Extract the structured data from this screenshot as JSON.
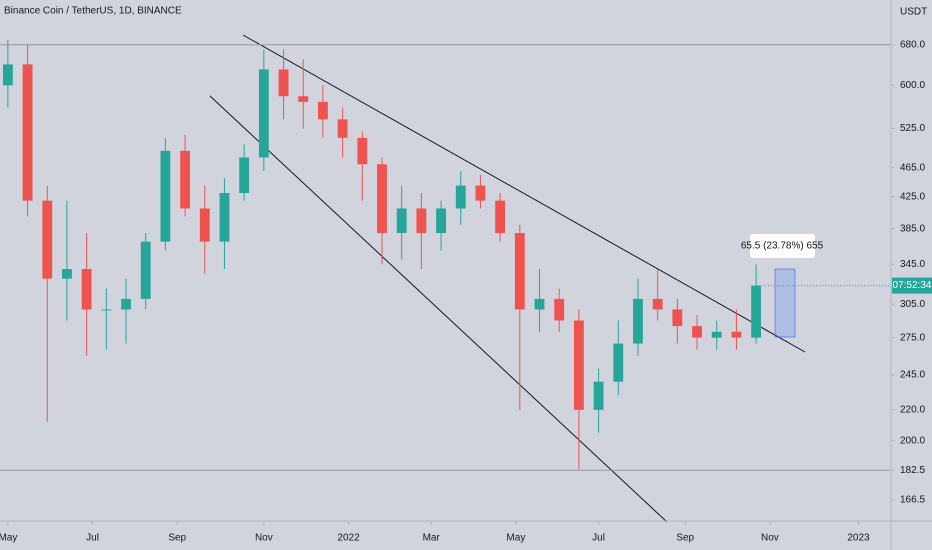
{
  "chart_data": {
    "type": "candlestick",
    "title": "Binance Coin / TetherUS, 1D, BINANCE",
    "y_unit": "USDT",
    "log_scale": true,
    "up_color": "#26a69a",
    "down_color": "#ef5350",
    "x": [
      0,
      1,
      2,
      3,
      4,
      5,
      6,
      7,
      8,
      9,
      10,
      11,
      12,
      13,
      14,
      15,
      16,
      17,
      18,
      19,
      20,
      21,
      22,
      23,
      24,
      25,
      26,
      27,
      28,
      29,
      30,
      31,
      32,
      33,
      34,
      35,
      36,
      37,
      38
    ],
    "open": [
      600,
      640,
      420,
      330,
      340,
      300,
      300,
      310,
      370,
      490,
      410,
      370,
      430,
      480,
      630,
      580,
      570,
      540,
      510,
      470,
      380,
      410,
      380,
      410,
      440,
      420,
      380,
      300,
      310,
      290,
      220,
      240,
      270,
      310,
      300,
      285,
      275,
      280,
      275
    ],
    "high": [
      690,
      680,
      440,
      420,
      380,
      320,
      330,
      380,
      510,
      515,
      440,
      450,
      500,
      670,
      670,
      650,
      600,
      560,
      520,
      480,
      440,
      430,
      420,
      460,
      455,
      430,
      390,
      340,
      320,
      300,
      250,
      290,
      330,
      340,
      310,
      295,
      290,
      300,
      345
    ],
    "low": [
      560,
      400,
      212,
      290,
      260,
      265,
      270,
      300,
      360,
      400,
      335,
      340,
      420,
      460,
      540,
      525,
      510,
      480,
      420,
      345,
      350,
      340,
      360,
      390,
      410,
      370,
      220,
      280,
      280,
      183,
      205,
      230,
      260,
      290,
      270,
      265,
      265,
      265,
      270
    ],
    "close": [
      640,
      420,
      330,
      340,
      300,
      300,
      310,
      370,
      490,
      410,
      370,
      430,
      480,
      630,
      580,
      570,
      540,
      510,
      470,
      380,
      410,
      380,
      410,
      440,
      420,
      380,
      300,
      310,
      290,
      220,
      240,
      270,
      310,
      300,
      285,
      275,
      280,
      275,
      323
    ],
    "xlim": [
      -0.4,
      44.8
    ],
    "xticks": [
      {
        "value": 0,
        "label": "May"
      },
      {
        "value": 4.3,
        "label": "Jul"
      },
      {
        "value": 8.6,
        "label": "Sep"
      },
      {
        "value": 13,
        "label": "Nov"
      },
      {
        "value": 17.3,
        "label": "2022"
      },
      {
        "value": 21.5,
        "label": "Mar"
      },
      {
        "value": 25.8,
        "label": "May"
      },
      {
        "value": 30,
        "label": "Jul"
      },
      {
        "value": 34.4,
        "label": "Sep"
      },
      {
        "value": 38.7,
        "label": "Nov"
      },
      {
        "value": 43.2,
        "label": "2023"
      }
    ],
    "ylim": [
      156.5,
      781
    ],
    "yticks": [
      {
        "value": 680,
        "label": "680.0"
      },
      {
        "value": 600,
        "label": "600.0"
      },
      {
        "value": 525,
        "label": "525.0"
      },
      {
        "value": 465,
        "label": "465.0"
      },
      {
        "value": 425,
        "label": "425.0"
      },
      {
        "value": 385,
        "label": "385.0"
      },
      {
        "value": 345,
        "label": "345.0"
      },
      {
        "value": 305,
        "label": "305.0"
      },
      {
        "value": 275,
        "label": "275.0"
      },
      {
        "value": 245,
        "label": "245.0"
      },
      {
        "value": 220,
        "label": "220.0"
      },
      {
        "value": 200,
        "label": "200.0"
      },
      {
        "value": 182.5,
        "label": "182.5"
      },
      {
        "value": 166.5,
        "label": "166.5"
      }
    ],
    "hlines": [
      680,
      182.5
    ],
    "price_countdown": "07:52:34",
    "measure_label": "65.5 (23.78%) 655"
  }
}
